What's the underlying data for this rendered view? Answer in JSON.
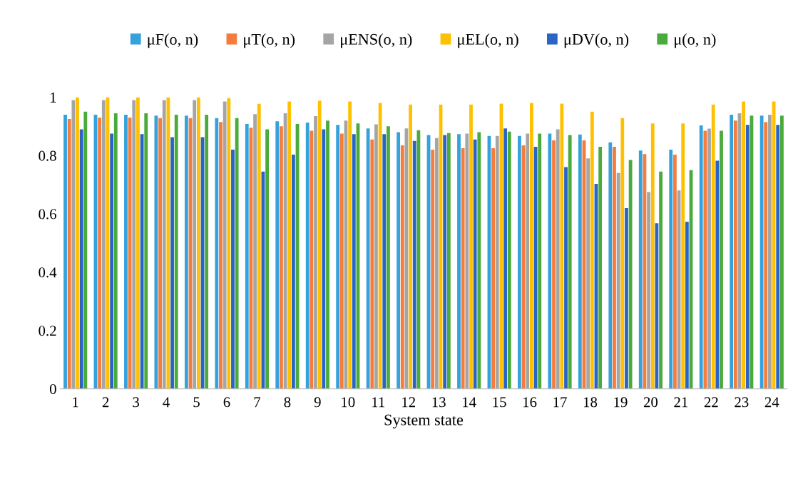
{
  "chart_data": {
    "type": "bar",
    "xlabel": "System state",
    "categories": [
      "1",
      "2",
      "3",
      "4",
      "5",
      "6",
      "7",
      "8",
      "9",
      "10",
      "11",
      "12",
      "13",
      "14",
      "15",
      "16",
      "17",
      "18",
      "19",
      "20",
      "21",
      "22",
      "23",
      "24"
    ],
    "series": [
      {
        "name": "μF(o, n)",
        "color": "#36a2dd",
        "values": [
          0.94,
          0.94,
          0.94,
          0.937,
          0.937,
          0.928,
          0.908,
          0.917,
          0.913,
          0.905,
          0.893,
          0.88,
          0.87,
          0.873,
          0.867,
          0.867,
          0.875,
          0.872,
          0.845,
          0.817,
          0.82,
          0.903,
          0.94,
          0.937
        ]
      },
      {
        "name": "μT(o, n)",
        "color": "#f47c3c",
        "values": [
          0.925,
          0.93,
          0.93,
          0.928,
          0.928,
          0.915,
          0.895,
          0.9,
          0.885,
          0.875,
          0.855,
          0.835,
          0.82,
          0.825,
          0.825,
          0.835,
          0.852,
          0.852,
          0.83,
          0.805,
          0.803,
          0.885,
          0.92,
          0.915
        ]
      },
      {
        "name": "μENS(o, n)",
        "color": "#a5a5a5",
        "values": [
          0.99,
          0.99,
          0.99,
          0.99,
          0.99,
          0.985,
          0.942,
          0.945,
          0.935,
          0.92,
          0.907,
          0.893,
          0.86,
          0.875,
          0.867,
          0.875,
          0.89,
          0.79,
          0.74,
          0.675,
          0.68,
          0.892,
          0.945,
          0.94
        ]
      },
      {
        "name": "μEL(o, n)",
        "color": "#ffc000",
        "values": [
          1.0,
          1.0,
          1.0,
          1.0,
          1.0,
          0.997,
          0.977,
          0.985,
          0.988,
          0.985,
          0.98,
          0.975,
          0.975,
          0.975,
          0.978,
          0.98,
          0.978,
          0.95,
          0.928,
          0.91,
          0.91,
          0.975,
          0.985,
          0.985
        ]
      },
      {
        "name": "μDV(o, n)",
        "color": "#2a64c4",
        "values": [
          0.89,
          0.875,
          0.873,
          0.863,
          0.863,
          0.82,
          0.745,
          0.803,
          0.89,
          0.873,
          0.873,
          0.85,
          0.87,
          0.855,
          0.893,
          0.83,
          0.76,
          0.703,
          0.62,
          0.568,
          0.573,
          0.782,
          0.905,
          0.905
        ]
      },
      {
        "name": "μ(o, n)",
        "color": "#4aaa3c",
        "values": [
          0.95,
          0.945,
          0.945,
          0.94,
          0.94,
          0.928,
          0.89,
          0.908,
          0.92,
          0.91,
          0.9,
          0.887,
          0.877,
          0.88,
          0.882,
          0.875,
          0.87,
          0.83,
          0.785,
          0.745,
          0.75,
          0.885,
          0.937,
          0.937
        ]
      }
    ],
    "ylim": [
      0,
      1.0
    ],
    "yticks": [
      0,
      {
        "value": 0.2,
        "label": "0.2"
      },
      {
        "value": 0.4,
        "label": "0.4"
      },
      {
        "value": 0.6,
        "label": "0.6"
      },
      {
        "value": 0.8,
        "label": "0.8"
      },
      {
        "value": 1.0,
        "label": "1"
      }
    ],
    "grid": false,
    "legend": "top"
  }
}
